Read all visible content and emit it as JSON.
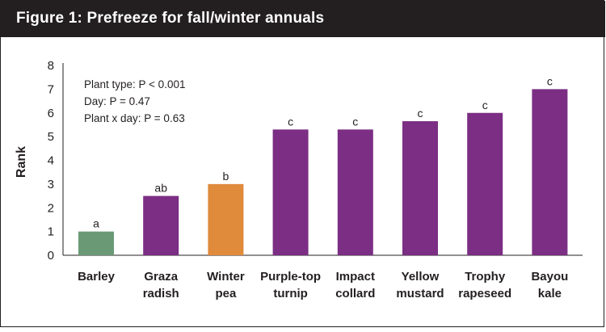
{
  "figure": {
    "title": "Figure 1: Prefreeze for fall/winter annuals"
  },
  "chart_data": {
    "type": "bar",
    "ylabel": "Rank",
    "xlabel": "",
    "ylim": [
      0,
      8
    ],
    "yticks": [
      0,
      1,
      2,
      3,
      4,
      5,
      6,
      7,
      8
    ],
    "grid": false,
    "legend": "none",
    "categories": [
      [
        "Barley"
      ],
      [
        "Graza",
        "radish"
      ],
      [
        "Winter",
        "pea"
      ],
      [
        "Purple-top",
        "turnip"
      ],
      [
        "Impact",
        "collard"
      ],
      [
        "Yellow",
        "mustard"
      ],
      [
        "Trophy",
        "rapeseed"
      ],
      [
        "Bayou",
        "kale"
      ]
    ],
    "values": [
      1.0,
      2.5,
      3.0,
      5.3,
      5.3,
      5.65,
      6.0,
      7.0
    ],
    "labels": [
      "a",
      "ab",
      "b",
      "c",
      "c",
      "c",
      "c",
      "c"
    ],
    "colors": [
      "#6a9a75",
      "#7b2e84",
      "#e08a3c",
      "#7b2e84",
      "#7b2e84",
      "#7b2e84",
      "#7b2e84",
      "#7b2e84"
    ],
    "annotations": [
      "Plant type: P < 0.001",
      "Day: P = 0.47",
      "Plant x day: P = 0.63"
    ]
  }
}
